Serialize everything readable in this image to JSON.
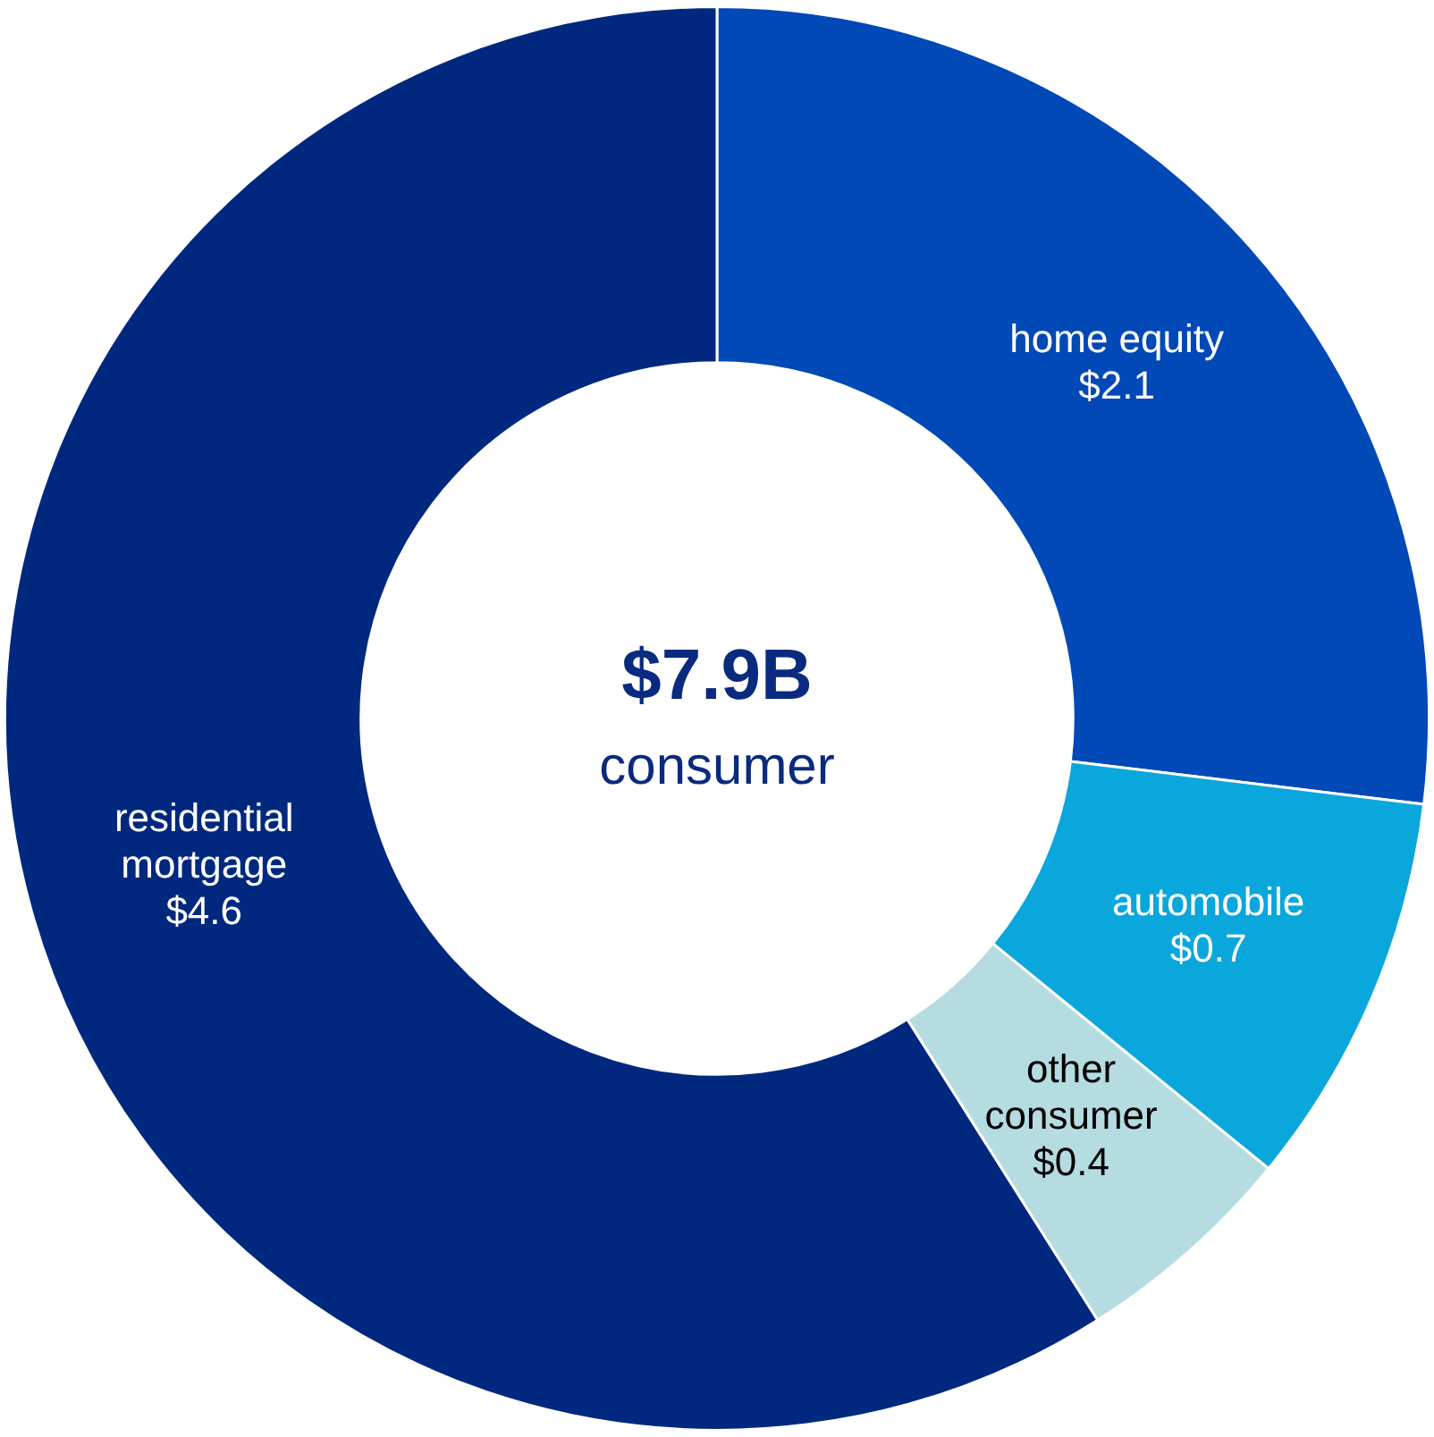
{
  "chart_data": {
    "type": "donut",
    "categories": [
      "home equity",
      "automobile",
      "other consumer",
      "residential mortgage"
    ],
    "values": [
      2.1,
      0.7,
      0.4,
      4.6
    ],
    "colors": [
      "#0049b7",
      "#0aa7dc",
      "#b5dce0",
      "#01287f"
    ],
    "value_labels": [
      "$2.1",
      "$0.7",
      "$0.4",
      "$4.6"
    ],
    "annotations": [
      "$7.9B",
      "consumer"
    ],
    "legend": false
  }
}
